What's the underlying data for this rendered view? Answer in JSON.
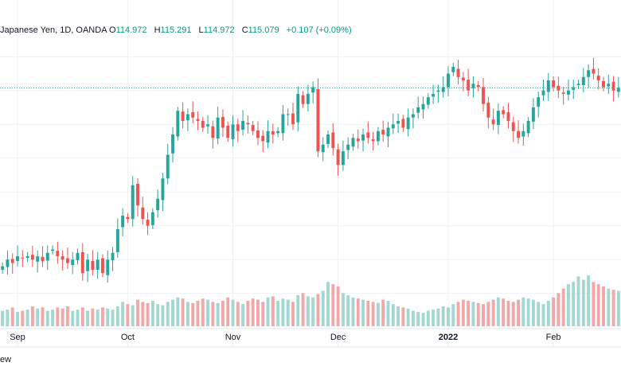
{
  "legend": {
    "symbol": "Japanese Yen, 1D, OANDA",
    "open_label": "O",
    "open": "114.972",
    "high_label": "H",
    "high": "115.291",
    "low_label": "L",
    "low": "114.972",
    "close_label": "C",
    "close": "115.079",
    "change": "+0.107 (+0.09%)"
  },
  "footer": {
    "text": "ew"
  },
  "colors": {
    "up": "#26a69a",
    "down": "#ef5350",
    "vol_up": "#a3d7d1",
    "vol_down": "#f2a8a8",
    "grid": "#eef0f3",
    "axis_text": "#131722"
  },
  "chart_data": {
    "type": "candlestick",
    "title": "Japanese Yen, 1D, OANDA",
    "xlabel": "",
    "ylabel": "",
    "ylim": [
      108.5,
      116.5
    ],
    "last_price": 115.079,
    "x_tick_labels": [
      {
        "label": "Sep",
        "index": 3,
        "bold": false
      },
      {
        "label": "Oct",
        "index": 25,
        "bold": false
      },
      {
        "label": "Nov",
        "index": 46,
        "bold": false
      },
      {
        "label": "Dec",
        "index": 67,
        "bold": false
      },
      {
        "label": "2022",
        "index": 89,
        "bold": true
      },
      {
        "label": "Feb",
        "index": 110,
        "bold": false
      }
    ],
    "close_series": [
      109.8,
      110.0,
      109.9,
      110.1,
      110.05,
      110.1,
      110.0,
      110.1,
      109.95,
      110.2,
      110.3,
      110.1,
      110.0,
      109.9,
      110.0,
      110.2,
      109.6,
      110.0,
      109.7,
      110.0,
      109.6,
      110.0,
      110.2,
      110.9,
      111.3,
      111.2,
      112.2,
      111.6,
      111.2,
      111.0,
      111.4,
      111.8,
      112.4,
      113.1,
      113.7,
      114.4,
      114.1,
      114.3,
      114.2,
      114.1,
      113.9,
      114.0,
      113.6,
      114.2,
      113.9,
      113.6,
      114.0,
      113.8,
      114.1,
      114.0,
      113.8,
      113.6,
      113.5,
      113.8,
      113.7,
      113.8,
      114.3,
      114.3,
      114.0,
      114.9,
      114.6,
      114.9,
      115.1,
      113.2,
      113.4,
      113.7,
      113.3,
      112.8,
      113.2,
      113.4,
      113.6,
      113.5,
      113.7,
      113.6,
      113.5,
      113.8,
      113.7,
      113.9,
      114.0,
      114.1,
      113.9,
      114.2,
      114.3,
      114.5,
      114.6,
      114.8,
      114.9,
      115.0,
      115.1,
      115.5,
      115.7,
      115.4,
      115.3,
      115.0,
      115.2,
      115.1,
      114.6,
      114.2,
      114.0,
      114.4,
      114.3,
      114.1,
      113.8,
      113.6,
      113.8,
      114.1,
      114.5,
      114.8,
      115.0,
      115.3,
      115.1,
      115.0,
      114.9,
      115.0,
      115.1,
      115.2,
      115.4,
      115.6,
      115.5,
      115.3,
      115.1,
      115.2,
      115.0,
      115.08
    ],
    "volume_series": [
      14,
      15,
      17,
      13,
      14,
      15,
      18,
      16,
      17,
      14,
      15,
      17,
      16,
      18,
      14,
      15,
      17,
      14,
      16,
      15,
      17,
      16,
      15,
      18,
      22,
      20,
      19,
      24,
      22,
      21,
      23,
      20,
      19,
      22,
      24,
      26,
      25,
      22,
      21,
      23,
      25,
      24,
      22,
      21,
      23,
      26,
      24,
      22,
      20,
      23,
      25,
      24,
      22,
      26,
      27,
      23,
      25,
      24,
      22,
      28,
      30,
      27,
      26,
      29,
      32,
      40,
      38,
      36,
      30,
      28,
      26,
      25,
      24,
      23,
      22,
      21,
      24,
      23,
      20,
      18,
      17,
      16,
      14,
      13,
      12,
      14,
      15,
      16,
      18,
      17,
      20,
      22,
      24,
      23,
      22,
      21,
      20,
      22,
      24,
      26,
      25,
      23,
      22,
      24,
      26,
      25,
      24,
      22,
      20,
      23,
      26,
      30,
      34,
      38,
      40,
      45,
      42,
      46,
      40,
      38,
      36,
      34,
      33,
      32
    ],
    "volume_unit": "relative"
  }
}
